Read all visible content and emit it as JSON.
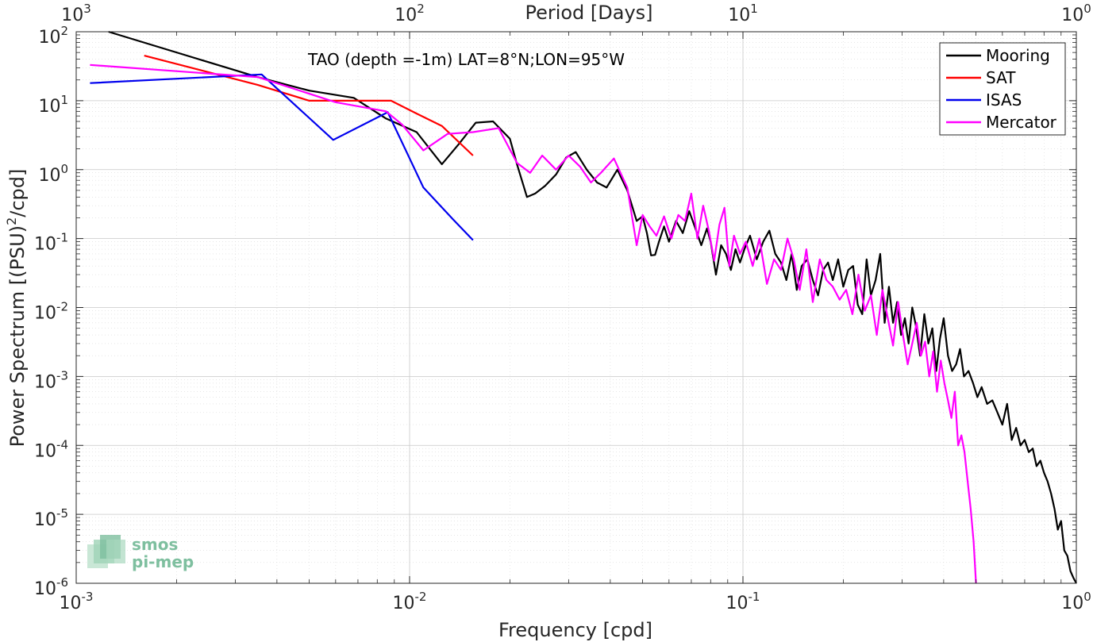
{
  "chart_data": {
    "type": "line",
    "annotation": "TAO (depth =-1m) LAT=8°N;LON=95°W",
    "xlabel": "Frequency [cpd]",
    "ylabel_main": "Power Spectrum [(PSU)",
    "ylabel_sup": "2",
    "ylabel_end": "/cpd]",
    "top_xlabel": "Period [Days]",
    "xscale": "log",
    "yscale": "log",
    "xlim": [
      0.001,
      1
    ],
    "ylim": [
      1e-06,
      100
    ],
    "grid": true,
    "legend_position": "top-right",
    "x_ticks": [
      {
        "value": 0.001,
        "base": "10",
        "exp": "-3"
      },
      {
        "value": 0.01,
        "base": "10",
        "exp": "-2"
      },
      {
        "value": 0.1,
        "base": "10",
        "exp": "-1"
      },
      {
        "value": 1,
        "base": "10",
        "exp": "0"
      }
    ],
    "y_ticks": [
      {
        "value": 100,
        "base": "10",
        "exp": "2"
      },
      {
        "value": 10,
        "base": "10",
        "exp": "1"
      },
      {
        "value": 1,
        "base": "10",
        "exp": "0"
      },
      {
        "value": 0.1,
        "base": "10",
        "exp": "-1"
      },
      {
        "value": 0.01,
        "base": "10",
        "exp": "-2"
      },
      {
        "value": 0.001,
        "base": "10",
        "exp": "-3"
      },
      {
        "value": 0.0001,
        "base": "10",
        "exp": "-4"
      },
      {
        "value": 1e-05,
        "base": "10",
        "exp": "-5"
      },
      {
        "value": 1e-06,
        "base": "10",
        "exp": "-6"
      }
    ],
    "top_ticks": [
      {
        "period": 1000,
        "base": "10",
        "exp": "3"
      },
      {
        "period": 100,
        "base": "10",
        "exp": "2"
      },
      {
        "period": 10,
        "base": "10",
        "exp": "1"
      },
      {
        "period": 1,
        "base": "10",
        "exp": "0"
      }
    ],
    "series": [
      {
        "name": "Mooring",
        "color": "#000000",
        "x": [
          0.00125,
          0.0035,
          0.005,
          0.0068,
          0.0085,
          0.0105,
          0.0125,
          0.014,
          0.0158,
          0.0178,
          0.02,
          0.021,
          0.0225,
          0.0238,
          0.0255,
          0.0275,
          0.0295,
          0.0315,
          0.034,
          0.0365,
          0.039,
          0.042,
          0.045,
          0.048,
          0.05,
          0.0515,
          0.053,
          0.0545,
          0.056,
          0.058,
          0.06,
          0.063,
          0.066,
          0.069,
          0.072,
          0.075,
          0.078,
          0.08,
          0.083,
          0.086,
          0.089,
          0.092,
          0.095,
          0.098,
          0.101,
          0.105,
          0.11,
          0.115,
          0.12,
          0.125,
          0.13,
          0.135,
          0.14,
          0.145,
          0.15,
          0.156,
          0.162,
          0.168,
          0.174,
          0.18,
          0.186,
          0.193,
          0.2,
          0.207,
          0.214,
          0.221,
          0.228,
          0.235,
          0.242,
          0.25,
          0.258,
          0.266,
          0.274,
          0.282,
          0.29,
          0.298,
          0.306,
          0.314,
          0.322,
          0.33,
          0.34,
          0.35,
          0.36,
          0.37,
          0.38,
          0.39,
          0.4,
          0.412,
          0.424,
          0.436,
          0.448,
          0.46,
          0.475,
          0.49,
          0.505,
          0.52,
          0.54,
          0.56,
          0.58,
          0.6,
          0.62,
          0.64,
          0.66,
          0.68,
          0.7,
          0.72,
          0.74,
          0.76,
          0.78,
          0.8,
          0.82,
          0.84,
          0.86,
          0.88,
          0.9,
          0.92,
          0.94,
          0.96,
          0.98,
          1.0
        ],
        "y": [
          100,
          22,
          14,
          11,
          5.5,
          3.5,
          1.2,
          2.3,
          4.8,
          5.0,
          2.8,
          1.2,
          0.4,
          0.45,
          0.58,
          0.85,
          1.5,
          1.8,
          1.0,
          0.65,
          0.55,
          1.0,
          0.5,
          0.18,
          0.21,
          0.12,
          0.057,
          0.058,
          0.09,
          0.15,
          0.09,
          0.18,
          0.12,
          0.25,
          0.14,
          0.08,
          0.14,
          0.09,
          0.03,
          0.08,
          0.06,
          0.035,
          0.07,
          0.045,
          0.07,
          0.11,
          0.05,
          0.09,
          0.13,
          0.06,
          0.045,
          0.025,
          0.06,
          0.018,
          0.04,
          0.05,
          0.025,
          0.015,
          0.035,
          0.045,
          0.025,
          0.05,
          0.02,
          0.035,
          0.04,
          0.011,
          0.008,
          0.05,
          0.015,
          0.025,
          0.06,
          0.006,
          0.02,
          0.006,
          0.012,
          0.004,
          0.007,
          0.003,
          0.01,
          0.0055,
          0.002,
          0.008,
          0.003,
          0.005,
          0.0012,
          0.0035,
          0.007,
          0.002,
          0.0012,
          0.0015,
          0.0025,
          0.001,
          0.0012,
          0.0008,
          0.0005,
          0.0007,
          0.0004,
          0.00045,
          0.0003,
          0.0002,
          0.0004,
          0.00012,
          0.00018,
          0.0001,
          0.00012,
          8e-05,
          9e-05,
          5e-05,
          6e-05,
          4e-05,
          3e-05,
          2e-05,
          1.2e-05,
          6e-06,
          8e-06,
          3e-06,
          2.5e-06,
          1.5e-06,
          1.2e-06,
          1e-06
        ]
      },
      {
        "name": "SAT",
        "color": "#ff0000",
        "x": [
          0.0016,
          0.0035,
          0.005,
          0.007,
          0.0088,
          0.0105,
          0.0125,
          0.0155
        ],
        "y": [
          45,
          17,
          10,
          10,
          10,
          6.5,
          4.3,
          1.6
        ]
      },
      {
        "name": "ISAS",
        "color": "#0000ee",
        "x": [
          0.0011,
          0.0036,
          0.0059,
          0.0086,
          0.011,
          0.0135,
          0.0155
        ],
        "y": [
          18,
          24,
          2.7,
          6.8,
          0.55,
          0.19,
          0.095
        ]
      },
      {
        "name": "Mercator",
        "color": "#ff00ff",
        "x": [
          0.0011,
          0.0035,
          0.006,
          0.0085,
          0.0095,
          0.011,
          0.013,
          0.0155,
          0.0185,
          0.021,
          0.023,
          0.025,
          0.0275,
          0.03,
          0.0325,
          0.035,
          0.0375,
          0.041,
          0.045,
          0.048,
          0.05,
          0.0525,
          0.055,
          0.058,
          0.061,
          0.064,
          0.067,
          0.07,
          0.073,
          0.076,
          0.079,
          0.082,
          0.085,
          0.088,
          0.091,
          0.094,
          0.098,
          0.102,
          0.107,
          0.112,
          0.118,
          0.124,
          0.13,
          0.136,
          0.142,
          0.148,
          0.155,
          0.162,
          0.17,
          0.178,
          0.186,
          0.195,
          0.204,
          0.213,
          0.222,
          0.232,
          0.242,
          0.252,
          0.262,
          0.272,
          0.282,
          0.292,
          0.302,
          0.312,
          0.322,
          0.332,
          0.342,
          0.352,
          0.362,
          0.372,
          0.382,
          0.392,
          0.402,
          0.412,
          0.422,
          0.432,
          0.442,
          0.452,
          0.462,
          0.472,
          0.482,
          0.492,
          0.5
        ],
        "y": [
          33,
          22,
          9.5,
          7,
          4.5,
          1.9,
          3.3,
          3.5,
          4.0,
          1.25,
          0.9,
          1.6,
          1.0,
          1.6,
          1.1,
          0.65,
          0.9,
          1.45,
          0.55,
          0.08,
          0.22,
          0.15,
          0.11,
          0.21,
          0.1,
          0.22,
          0.18,
          0.45,
          0.1,
          0.3,
          0.13,
          0.048,
          0.16,
          0.28,
          0.04,
          0.11,
          0.06,
          0.09,
          0.04,
          0.1,
          0.022,
          0.05,
          0.035,
          0.1,
          0.05,
          0.018,
          0.07,
          0.012,
          0.05,
          0.025,
          0.02,
          0.013,
          0.018,
          0.008,
          0.03,
          0.009,
          0.015,
          0.004,
          0.018,
          0.007,
          0.0028,
          0.012,
          0.004,
          0.0015,
          0.003,
          0.006,
          0.002,
          0.0032,
          0.001,
          0.0023,
          0.0006,
          0.0017,
          0.0008,
          0.00045,
          0.00025,
          0.0006,
          0.0001,
          0.00014,
          8e-05,
          3e-05,
          1.2e-05,
          4e-06,
          1e-06
        ]
      }
    ],
    "logo": {
      "line1": "smos",
      "line2": "pi-mep",
      "color": "#7ebf9f"
    }
  }
}
